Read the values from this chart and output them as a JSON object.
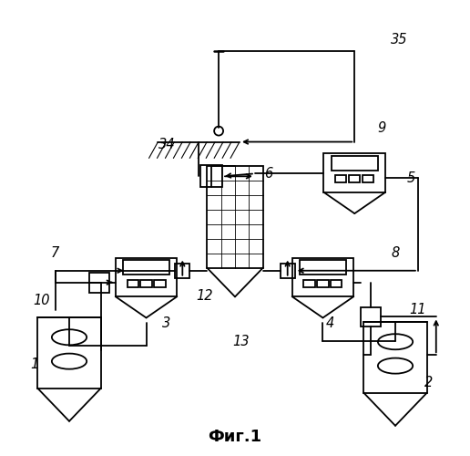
{
  "title": "Фиг.1",
  "background_color": "#ffffff",
  "line_color": "#000000",
  "lw": 1.3
}
